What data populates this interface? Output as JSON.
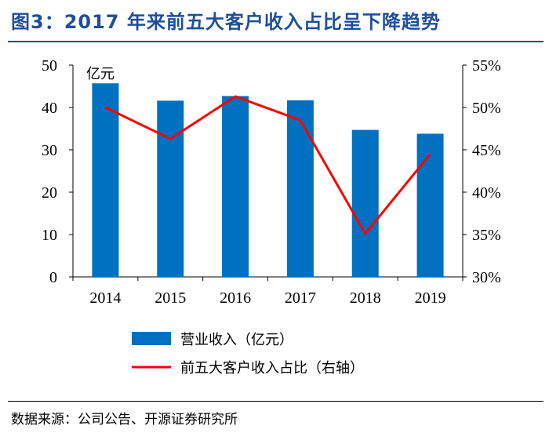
{
  "title": "图3：2017 年来前五大客户收入占比呈下降趋势",
  "source": "数据来源：公司公告、开源证券研究所",
  "colors": {
    "bar": "#0070C0",
    "line": "#FF0000",
    "title": "#1F4E9C"
  },
  "chart_data": {
    "type": "bar",
    "categories": [
      "2014",
      "2015",
      "2016",
      "2017",
      "2018",
      "2019"
    ],
    "series": [
      {
        "name": "营业收入（亿元）",
        "type": "bar",
        "axis": "left",
        "values": [
          45.7,
          41.6,
          42.7,
          41.7,
          34.7,
          33.8
        ]
      },
      {
        "name": "前五大客户收入占比（右轴）",
        "type": "line",
        "axis": "right",
        "values": [
          50.0,
          46.3,
          51.3,
          48.5,
          35.1,
          44.5
        ]
      }
    ],
    "y_left": {
      "unit": "亿元",
      "ylim": [
        0,
        50
      ],
      "ticks": [
        "0",
        "10",
        "20",
        "30",
        "40",
        "50"
      ]
    },
    "y_right": {
      "ylim": [
        30,
        55
      ],
      "ticks": [
        "30%",
        "35%",
        "40%",
        "45%",
        "50%",
        "55%"
      ]
    },
    "legend_position": "bottom",
    "grid": false
  }
}
